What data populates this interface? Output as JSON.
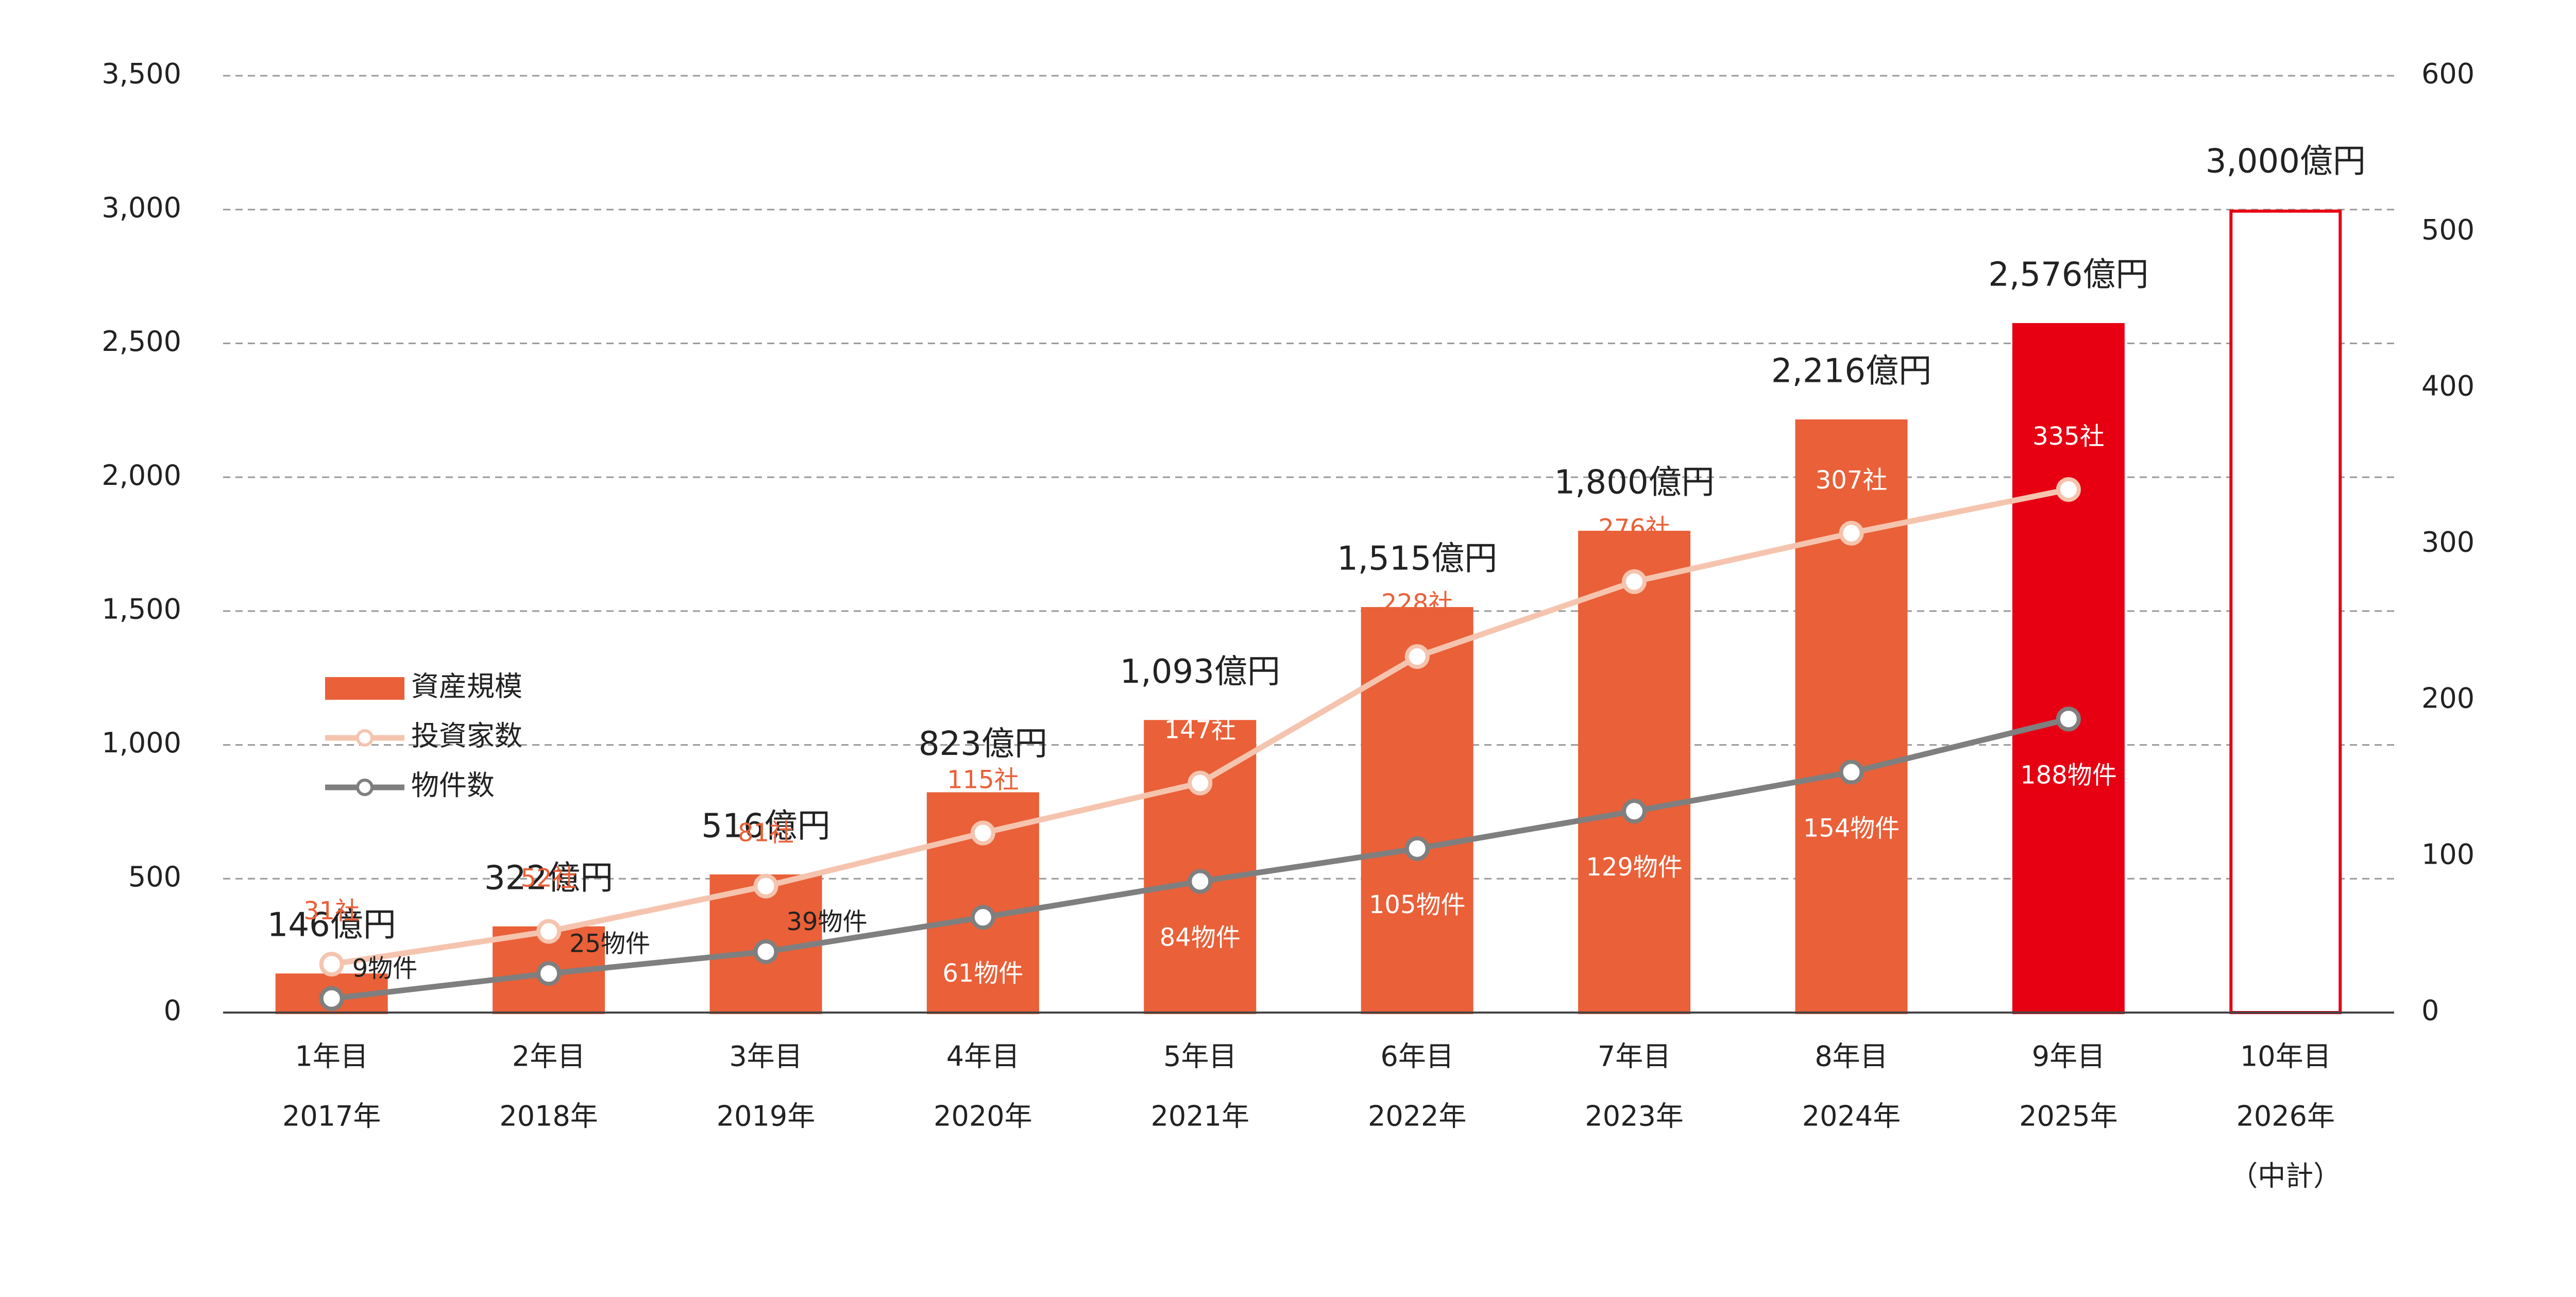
{
  "chart_data": {
    "type": "bar",
    "categories": [
      [
        "1年目",
        "2017年"
      ],
      [
        "2年目",
        "2018年"
      ],
      [
        "3年目",
        "2019年"
      ],
      [
        "4年目",
        "2020年"
      ],
      [
        "5年目",
        "2021年"
      ],
      [
        "6年目",
        "2022年"
      ],
      [
        "7年目",
        "2023年"
      ],
      [
        "8年目",
        "2024年"
      ],
      [
        "9年目",
        "2025年"
      ],
      [
        "10年目",
        "2026年",
        "（中計）"
      ]
    ],
    "ylim": [
      0,
      3500
    ],
    "yticks": [
      0,
      500,
      {
        "value": 1000,
        "label": "1,000"
      },
      {
        "value": 1500,
        "label": "1,500"
      },
      {
        "value": 2000,
        "label": "2,000"
      },
      {
        "value": 2500,
        "label": "2,500"
      },
      {
        "value": 3000,
        "label": "3,000"
      },
      {
        "value": 3500,
        "label": "3,500"
      }
    ],
    "y2lim": [
      0,
      600
    ],
    "y2ticks": [
      0,
      100,
      200,
      300,
      400,
      500,
      600
    ],
    "grid": true,
    "series": [
      {
        "name": "資産規模",
        "type": "bar",
        "values": [
          146,
          322,
          516,
          823,
          1093,
          1515,
          1800,
          2216,
          2576,
          3000
        ],
        "value_labels": [
          "146億円",
          "322億円",
          "516億円",
          "823億円",
          "1,093億円",
          "1,515億円",
          "1,800億円",
          "2,216億円",
          "2,576億円",
          "3,000億円"
        ],
        "color": "#ea6038",
        "colors": [
          "#ea6038",
          "#ea6038",
          "#ea6038",
          "#ea6038",
          "#ea6038",
          "#ea6038",
          "#ea6038",
          "#ea6038",
          "#e60012",
          "#ffffff"
        ],
        "edgecolors": [
          "#ea6038",
          "#ea6038",
          "#ea6038",
          "#ea6038",
          "#ea6038",
          "#ea6038",
          "#ea6038",
          "#ea6038",
          "#e60012",
          "#e60012"
        ]
      },
      {
        "name": "投資家数",
        "type": "line",
        "axis": "y2",
        "color": "#f5c4ae",
        "values": [
          31,
          52,
          81,
          115,
          147,
          228,
          276,
          307,
          335,
          null
        ],
        "value_labels": [
          "31社",
          "52社",
          "81社",
          "115社",
          "147社",
          "228社",
          "276社",
          "307社",
          "335社",
          null
        ]
      },
      {
        "name": "物件数",
        "type": "line",
        "axis": "y2",
        "color": "#7f7f7f",
        "values": [
          9,
          25,
          39,
          61,
          84,
          105,
          129,
          154,
          188,
          null
        ],
        "value_labels": [
          "9物件",
          "25物件",
          "39物件",
          "61物件",
          "84物件",
          "105物件",
          "129物件",
          "154物件",
          "188物件",
          null
        ]
      }
    ]
  }
}
